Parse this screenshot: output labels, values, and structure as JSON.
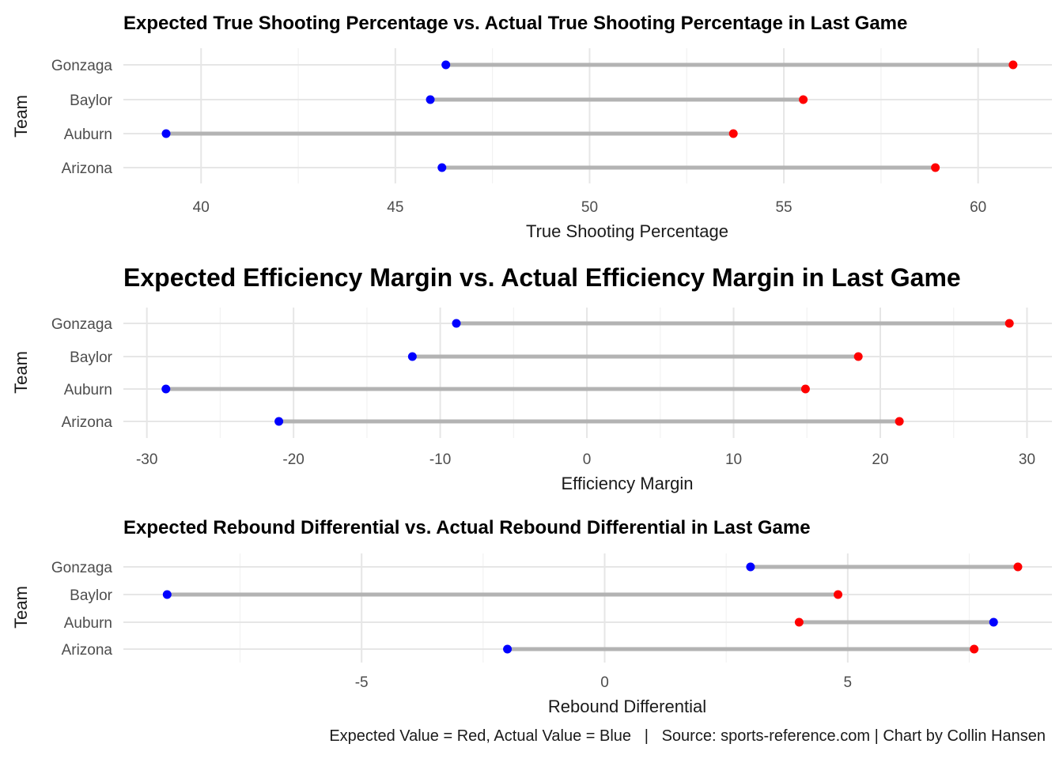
{
  "chart_data": [
    {
      "type": "dumbbell",
      "title": "Expected True Shooting Percentage vs. Actual True Shooting Percentage in Last Game",
      "xlabel": "True Shooting Percentage",
      "ylabel": "Team",
      "categories": [
        "Arizona",
        "Auburn",
        "Baylor",
        "Gonzaga"
      ],
      "series": [
        {
          "name": "Expected Value",
          "color": "#ff0000",
          "values": [
            58.9,
            53.7,
            55.5,
            60.9
          ]
        },
        {
          "name": "Actual Value",
          "color": "#0000ff",
          "values": [
            46.2,
            39.1,
            45.9,
            46.3
          ]
        }
      ],
      "xlim": [
        38.0,
        61.9
      ],
      "xticks": [
        40,
        45,
        50,
        55,
        60
      ],
      "grid": true
    },
    {
      "type": "dumbbell",
      "title": "Expected Efficiency Margin vs. Actual Efficiency Margin in Last Game",
      "xlabel": "Efficiency Margin",
      "ylabel": "Team",
      "categories": [
        "Arizona",
        "Auburn",
        "Baylor",
        "Gonzaga"
      ],
      "series": [
        {
          "name": "Expected Value",
          "color": "#ff0000",
          "values": [
            21.3,
            14.9,
            18.5,
            28.8
          ]
        },
        {
          "name": "Actual Value",
          "color": "#0000ff",
          "values": [
            -21.0,
            -28.7,
            -11.9,
            -8.9
          ]
        }
      ],
      "xlim": [
        -31.6,
        31.7
      ],
      "xticks": [
        -30,
        -20,
        -10,
        0,
        10,
        20,
        30
      ],
      "grid": true
    },
    {
      "type": "dumbbell",
      "title": "Expected Rebound Differential vs. Actual Rebound Differential in Last Game",
      "xlabel": "Rebound Differential",
      "ylabel": "Team",
      "categories": [
        "Arizona",
        "Auburn",
        "Baylor",
        "Gonzaga"
      ],
      "series": [
        {
          "name": "Expected Value",
          "color": "#ff0000",
          "values": [
            7.6,
            4.0,
            4.8,
            8.5
          ]
        },
        {
          "name": "Actual Value",
          "color": "#0000ff",
          "values": [
            -2.0,
            8.0,
            -9.0,
            3.0
          ]
        }
      ],
      "xlim": [
        -9.9,
        9.2
      ],
      "xticks": [
        -5,
        0,
        5
      ],
      "grid": true
    }
  ],
  "caption": "Expected Value = Red, Actual Value = Blue   |   Source: sports-reference.com | Chart by Collin Hansen"
}
